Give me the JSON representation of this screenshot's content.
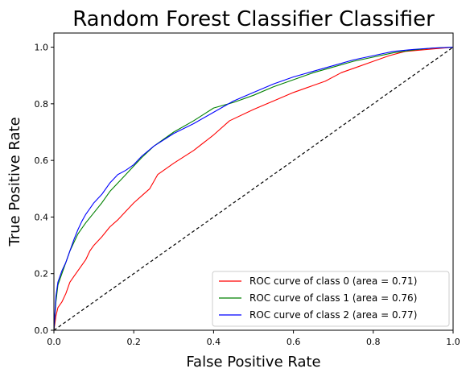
{
  "chart_data": {
    "type": "line",
    "title": "Random Forest Classifier Classifier",
    "xlabel": "False Positive Rate",
    "ylabel": "True Positive Rate",
    "xlim": [
      0.0,
      1.0
    ],
    "ylim": [
      0.0,
      1.05
    ],
    "x_ticks": [
      0.0,
      0.2,
      0.4,
      0.6,
      0.8,
      1.0
    ],
    "x_tick_labels": [
      "0.0",
      "0.2",
      "0.4",
      "0.6",
      "0.8",
      "1.0"
    ],
    "y_ticks": [
      0.0,
      0.2,
      0.4,
      0.6,
      0.8,
      1.0
    ],
    "y_tick_labels": [
      "0.0",
      "0.2",
      "0.4",
      "0.6",
      "0.8",
      "1.0"
    ],
    "grid": false,
    "legend_position": "lower-right",
    "series": [
      {
        "name": "ROC curve of class 0 (area = 0.71)",
        "color": "#ff0000",
        "x": [
          0.0,
          0.005,
          0.01,
          0.02,
          0.03,
          0.04,
          0.05,
          0.06,
          0.07,
          0.08,
          0.09,
          0.1,
          0.12,
          0.14,
          0.16,
          0.18,
          0.2,
          0.22,
          0.24,
          0.26,
          0.3,
          0.35,
          0.4,
          0.44,
          0.5,
          0.55,
          0.6,
          0.65,
          0.68,
          0.72,
          0.76,
          0.8,
          0.84,
          0.88,
          0.92,
          0.96,
          1.0
        ],
        "y": [
          0.0,
          0.05,
          0.08,
          0.1,
          0.13,
          0.17,
          0.19,
          0.21,
          0.23,
          0.25,
          0.28,
          0.3,
          0.33,
          0.365,
          0.39,
          0.42,
          0.45,
          0.475,
          0.5,
          0.55,
          0.59,
          0.635,
          0.69,
          0.74,
          0.78,
          0.81,
          0.84,
          0.865,
          0.88,
          0.91,
          0.93,
          0.95,
          0.97,
          0.985,
          0.99,
          0.995,
          1.0
        ]
      },
      {
        "name": "ROC curve of class 1 (area = 0.76)",
        "color": "#008000",
        "x": [
          0.0,
          0.005,
          0.01,
          0.02,
          0.03,
          0.04,
          0.05,
          0.06,
          0.07,
          0.08,
          0.1,
          0.12,
          0.14,
          0.16,
          0.18,
          0.2,
          0.22,
          0.25,
          0.3,
          0.35,
          0.4,
          0.45,
          0.5,
          0.55,
          0.6,
          0.65,
          0.7,
          0.75,
          0.8,
          0.85,
          0.9,
          0.95,
          1.0
        ],
        "y": [
          0.0,
          0.1,
          0.16,
          0.2,
          0.24,
          0.28,
          0.31,
          0.34,
          0.36,
          0.38,
          0.415,
          0.45,
          0.49,
          0.52,
          0.55,
          0.58,
          0.61,
          0.65,
          0.7,
          0.74,
          0.785,
          0.805,
          0.83,
          0.86,
          0.885,
          0.91,
          0.93,
          0.95,
          0.965,
          0.98,
          0.99,
          0.997,
          1.0
        ]
      },
      {
        "name": "ROC curve of class 2 (area = 0.77)",
        "color": "#0000ff",
        "x": [
          0.0,
          0.005,
          0.01,
          0.02,
          0.03,
          0.04,
          0.05,
          0.06,
          0.07,
          0.08,
          0.09,
          0.1,
          0.12,
          0.14,
          0.16,
          0.18,
          0.2,
          0.22,
          0.25,
          0.3,
          0.35,
          0.4,
          0.45,
          0.5,
          0.55,
          0.6,
          0.65,
          0.7,
          0.75,
          0.8,
          0.85,
          0.9,
          0.95,
          1.0
        ],
        "y": [
          0.0,
          0.12,
          0.17,
          0.21,
          0.24,
          0.28,
          0.32,
          0.355,
          0.385,
          0.41,
          0.43,
          0.45,
          0.48,
          0.52,
          0.55,
          0.565,
          0.585,
          0.615,
          0.65,
          0.695,
          0.73,
          0.77,
          0.81,
          0.84,
          0.87,
          0.895,
          0.915,
          0.935,
          0.955,
          0.97,
          0.985,
          0.992,
          0.997,
          1.0
        ]
      }
    ],
    "reference_line": {
      "x": [
        0.0,
        1.0
      ],
      "y": [
        0.0,
        1.0
      ],
      "color": "#000000",
      "style": "dashed"
    }
  }
}
